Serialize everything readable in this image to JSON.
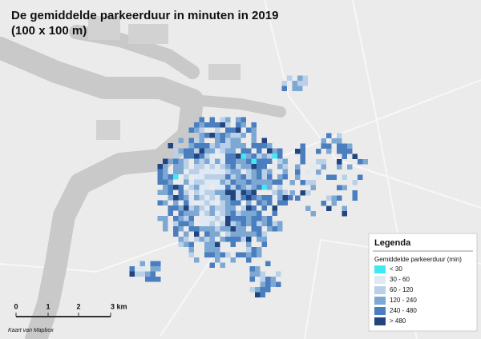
{
  "map": {
    "title": "De gemiddelde parkeerduur in minuten in 2019",
    "subtitle": "(100 x 100 m)",
    "legend": {
      "title": "Legenda",
      "subtitle": "Gemiddelde parkeerduur (min)",
      "items": [
        {
          "label": "< 30",
          "color": "#3fe9f2"
        },
        {
          "label": "30 - 60",
          "color": "#dfe9f4"
        },
        {
          "label": "60 - 120",
          "color": "#b9d0e8"
        },
        {
          "label": "120 - 240",
          "color": "#7ea8d4"
        },
        {
          "label": "240 - 480",
          "color": "#4a7ebf"
        },
        {
          "label": "> 480",
          "color": "#22457d"
        }
      ]
    },
    "scale_bar": {
      "labels": [
        "0",
        "1",
        "2",
        "3 km"
      ]
    },
    "credit": "Kaart van Mapbox"
  }
}
